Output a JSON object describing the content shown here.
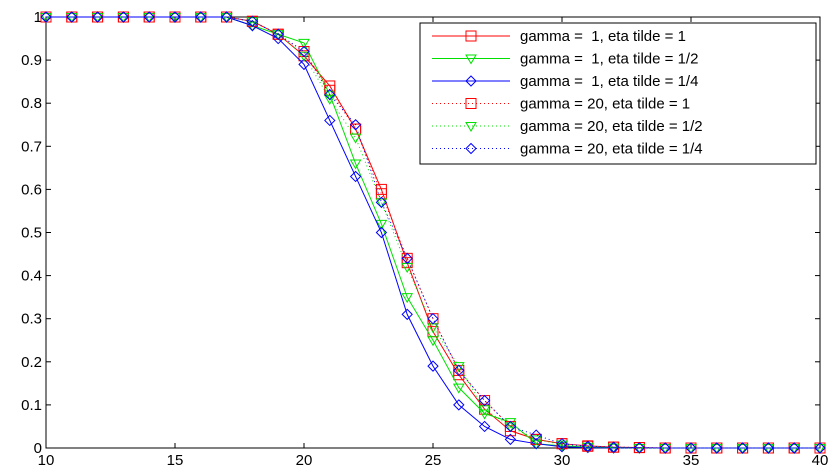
{
  "chart_data": {
    "type": "line",
    "title": "",
    "xlabel": "",
    "ylabel": "",
    "xlim": [
      10,
      40
    ],
    "ylim": [
      0,
      1
    ],
    "x_ticks": [
      10,
      15,
      20,
      25,
      30,
      35,
      40
    ],
    "y_ticks": [
      0,
      0.1,
      0.2,
      0.3,
      0.4,
      0.5,
      0.6,
      0.7,
      0.8,
      0.9,
      1
    ],
    "x_tick_labels": [
      "10",
      "15",
      "20",
      "25",
      "30",
      "35",
      "40"
    ],
    "y_tick_labels": [
      "0",
      "0.1",
      "0.2",
      "0.3",
      "0.4",
      "0.5",
      "0.6",
      "0.7",
      "0.8",
      "0.9",
      "1"
    ],
    "grid": false,
    "legend_position": "top-right",
    "x": [
      10,
      11,
      12,
      13,
      14,
      15,
      16,
      17,
      18,
      19,
      20,
      21,
      22,
      23,
      24,
      25,
      26,
      27,
      28,
      29,
      30,
      31,
      32,
      33,
      34,
      35,
      36,
      37,
      38,
      39,
      40
    ],
    "series": [
      {
        "name": "gamma =  1, eta tilde = 1",
        "color": "#ff0000",
        "line_style": "solid",
        "marker": "square",
        "values": [
          1,
          1,
          1,
          1,
          1,
          1,
          1,
          1,
          0.99,
          0.96,
          0.91,
          0.84,
          0.74,
          0.6,
          0.43,
          0.27,
          0.17,
          0.09,
          0.04,
          0.02,
          0.01,
          0.005,
          0.002,
          0.001,
          0,
          0,
          0,
          0,
          0,
          0,
          0
        ]
      },
      {
        "name": "gamma =  1, eta tilde = 1/2",
        "color": "#00e000",
        "line_style": "solid",
        "marker": "triangle-down",
        "values": [
          1,
          1,
          1,
          1,
          1,
          1,
          1,
          1,
          0.98,
          0.96,
          0.94,
          0.82,
          0.66,
          0.52,
          0.35,
          0.25,
          0.14,
          0.08,
          0.06,
          0.01,
          0.005,
          0.002,
          0.001,
          0,
          0,
          0,
          0,
          0,
          0,
          0,
          0
        ]
      },
      {
        "name": "gamma =  1, eta tilde = 1/4",
        "color": "#0000ff",
        "line_style": "solid",
        "marker": "diamond",
        "values": [
          1,
          1,
          1,
          1,
          1,
          1,
          1,
          1,
          0.98,
          0.95,
          0.89,
          0.76,
          0.63,
          0.5,
          0.31,
          0.19,
          0.1,
          0.05,
          0.02,
          0.01,
          0.003,
          0.001,
          0,
          0,
          0,
          0,
          0,
          0,
          0,
          0,
          0
        ]
      },
      {
        "name": "gamma = 20, eta tilde = 1",
        "color": "#ff0000",
        "line_style": "dotted",
        "marker": "square",
        "values": [
          1,
          1,
          1,
          1,
          1,
          1,
          1,
          1,
          0.99,
          0.96,
          0.92,
          0.83,
          0.74,
          0.59,
          0.44,
          0.3,
          0.18,
          0.11,
          0.05,
          0.02,
          0.01,
          0.004,
          0.002,
          0.001,
          0,
          0,
          0,
          0,
          0,
          0,
          0
        ]
      },
      {
        "name": "gamma = 20, eta tilde = 1/2",
        "color": "#00e000",
        "line_style": "dotted",
        "marker": "triangle-down",
        "values": [
          1,
          1,
          1,
          1,
          1,
          1,
          1,
          1,
          0.99,
          0.96,
          0.91,
          0.81,
          0.72,
          0.57,
          0.42,
          0.28,
          0.19,
          0.09,
          0.05,
          0.02,
          0.008,
          0.003,
          0.001,
          0,
          0,
          0,
          0,
          0,
          0,
          0,
          0
        ]
      },
      {
        "name": "gamma = 20, eta tilde = 1/4",
        "color": "#0000ff",
        "line_style": "dotted",
        "marker": "diamond",
        "values": [
          1,
          1,
          1,
          1,
          1,
          1,
          1,
          1,
          0.99,
          0.96,
          0.92,
          0.82,
          0.75,
          0.57,
          0.44,
          0.3,
          0.18,
          0.11,
          0.05,
          0.03,
          0.01,
          0.004,
          0.002,
          0.001,
          0,
          0,
          0,
          0,
          0,
          0,
          0
        ]
      }
    ]
  }
}
